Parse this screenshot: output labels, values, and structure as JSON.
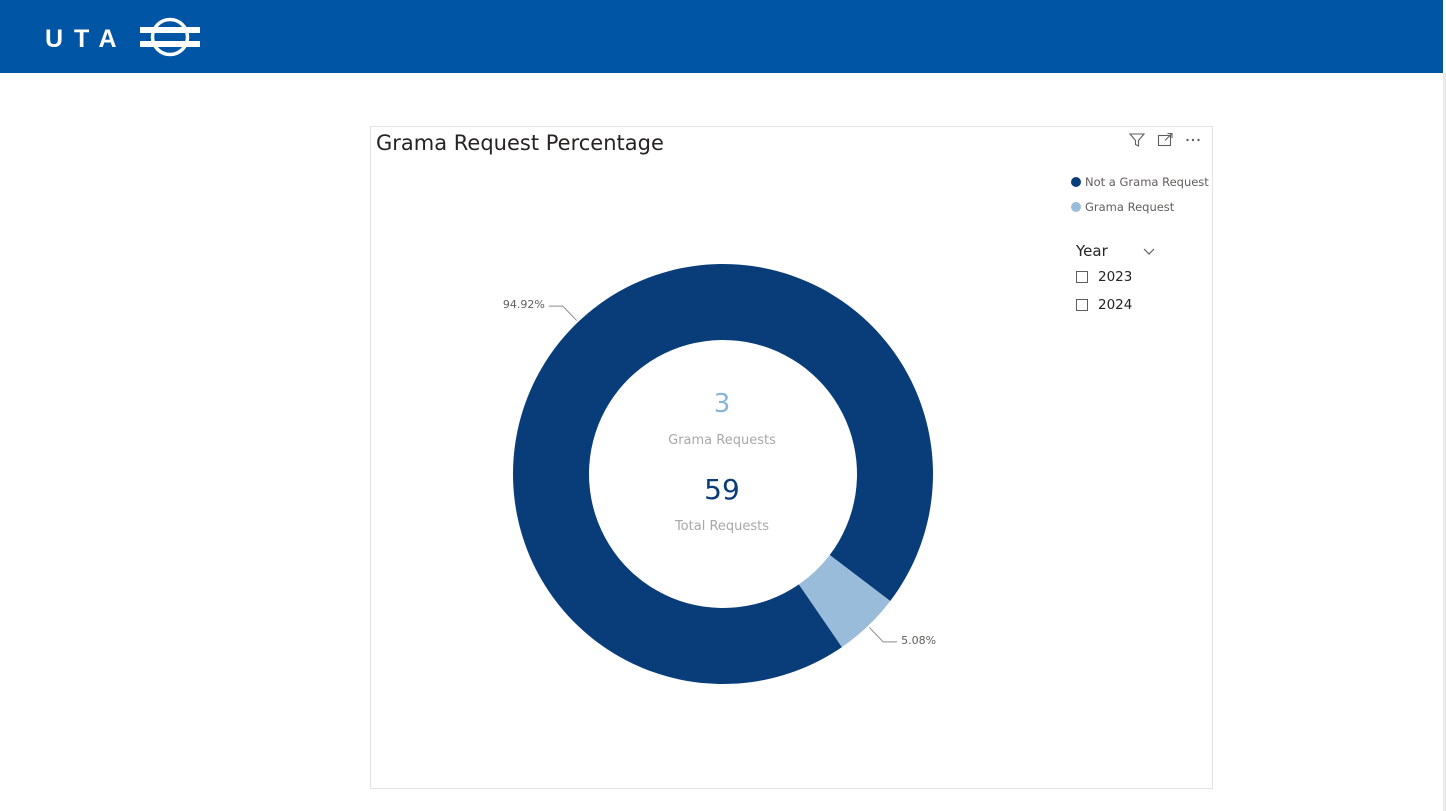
{
  "header": {
    "logo_text": "UTA",
    "background_color": "#0055a5"
  },
  "visual": {
    "title": "Grama Request Percentage",
    "icons": [
      "filter-icon",
      "focus-mode-icon",
      "more-options-icon"
    ]
  },
  "legend": {
    "items": [
      {
        "label": "Not a Grama Request",
        "color": "#093d7a"
      },
      {
        "label": "Grama Request",
        "color": "#9abcdb"
      }
    ]
  },
  "slicer": {
    "title": "Year",
    "options": [
      {
        "label": "2023",
        "checked": false
      },
      {
        "label": "2024",
        "checked": false
      }
    ]
  },
  "center": {
    "grama_count": "3",
    "grama_label": "Grama Requests",
    "total_count": "59",
    "total_label": "Total Requests"
  },
  "chart_data": {
    "type": "pie",
    "categories": [
      "Not a Grama Request",
      "Grama Request"
    ],
    "values": [
      94.92,
      5.08
    ],
    "labels": [
      "94.92%",
      "5.08%"
    ],
    "colors": [
      "#093d7a",
      "#9abcdb"
    ],
    "legend": "top-right"
  }
}
